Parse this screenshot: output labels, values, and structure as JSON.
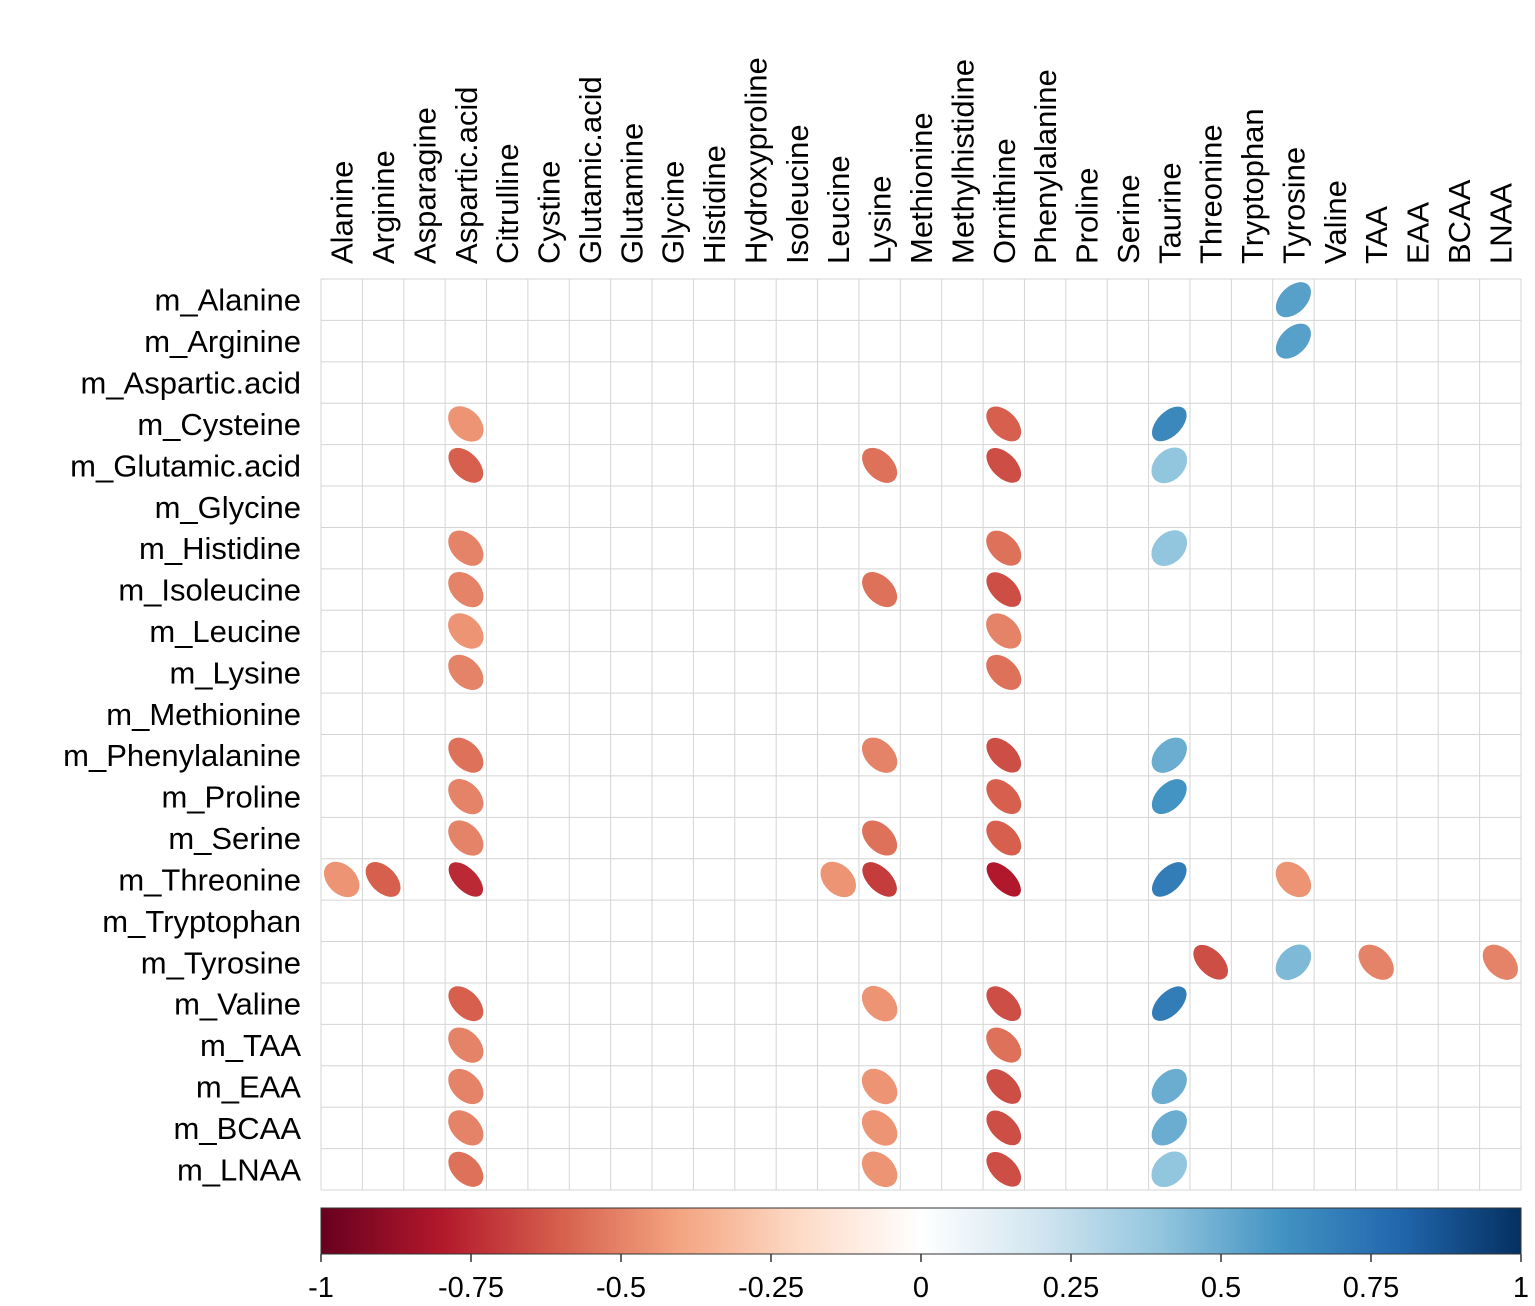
{
  "chart_data": {
    "type": "heatmap",
    "title": "",
    "xlabel": "",
    "ylabel": "",
    "columns": [
      "Alanine",
      "Arginine",
      "Asparagine",
      "Aspartic.acid",
      "Citrulline",
      "Cystine",
      "Glutamic.acid",
      "Glutamine",
      "Glycine",
      "Histidine",
      "Hydroxyproline",
      "Isoleucine",
      "Leucine",
      "Lysine",
      "Methionine",
      "Methylhistidine",
      "Ornithine",
      "Phenylalanine",
      "Proline",
      "Serine",
      "Taurine",
      "Threonine",
      "Tryptophan",
      "Tyrosine",
      "Valine",
      "TAA",
      "EAA",
      "BCAA",
      "LNAA"
    ],
    "rows": [
      "m_Alanine",
      "m_Arginine",
      "m_Aspartic.acid",
      "m_Cysteine",
      "m_Glutamic.acid",
      "m_Glycine",
      "m_Histidine",
      "m_Isoleucine",
      "m_Leucine",
      "m_Lysine",
      "m_Methionine",
      "m_Phenylalanine",
      "m_Proline",
      "m_Serine",
      "m_Threonine",
      "m_Tryptophan",
      "m_Tyrosine",
      "m_Valine",
      "m_TAA",
      "m_EAA",
      "m_BCAA",
      "m_LNAA"
    ],
    "cells": [
      {
        "row": "m_Alanine",
        "col": "Tyrosine",
        "value": 0.55
      },
      {
        "row": "m_Arginine",
        "col": "Tyrosine",
        "value": 0.55
      },
      {
        "row": "m_Cysteine",
        "col": "Aspartic.acid",
        "value": -0.45
      },
      {
        "row": "m_Cysteine",
        "col": "Ornithine",
        "value": -0.6
      },
      {
        "row": "m_Cysteine",
        "col": "Taurine",
        "value": 0.65
      },
      {
        "row": "m_Glutamic.acid",
        "col": "Aspartic.acid",
        "value": -0.6
      },
      {
        "row": "m_Glutamic.acid",
        "col": "Lysine",
        "value": -0.55
      },
      {
        "row": "m_Glutamic.acid",
        "col": "Ornithine",
        "value": -0.65
      },
      {
        "row": "m_Glutamic.acid",
        "col": "Taurine",
        "value": 0.4
      },
      {
        "row": "m_Histidine",
        "col": "Aspartic.acid",
        "value": -0.5
      },
      {
        "row": "m_Histidine",
        "col": "Ornithine",
        "value": -0.55
      },
      {
        "row": "m_Histidine",
        "col": "Taurine",
        "value": 0.4
      },
      {
        "row": "m_Isoleucine",
        "col": "Aspartic.acid",
        "value": -0.5
      },
      {
        "row": "m_Isoleucine",
        "col": "Lysine",
        "value": -0.55
      },
      {
        "row": "m_Isoleucine",
        "col": "Ornithine",
        "value": -0.65
      },
      {
        "row": "m_Leucine",
        "col": "Aspartic.acid",
        "value": -0.45
      },
      {
        "row": "m_Leucine",
        "col": "Ornithine",
        "value": -0.5
      },
      {
        "row": "m_Lysine",
        "col": "Aspartic.acid",
        "value": -0.5
      },
      {
        "row": "m_Lysine",
        "col": "Ornithine",
        "value": -0.55
      },
      {
        "row": "m_Phenylalanine",
        "col": "Aspartic.acid",
        "value": -0.55
      },
      {
        "row": "m_Phenylalanine",
        "col": "Lysine",
        "value": -0.5
      },
      {
        "row": "m_Phenylalanine",
        "col": "Ornithine",
        "value": -0.65
      },
      {
        "row": "m_Phenylalanine",
        "col": "Taurine",
        "value": 0.5
      },
      {
        "row": "m_Proline",
        "col": "Aspartic.acid",
        "value": -0.5
      },
      {
        "row": "m_Proline",
        "col": "Ornithine",
        "value": -0.6
      },
      {
        "row": "m_Proline",
        "col": "Taurine",
        "value": 0.6
      },
      {
        "row": "m_Serine",
        "col": "Aspartic.acid",
        "value": -0.5
      },
      {
        "row": "m_Serine",
        "col": "Lysine",
        "value": -0.55
      },
      {
        "row": "m_Serine",
        "col": "Ornithine",
        "value": -0.6
      },
      {
        "row": "m_Threonine",
        "col": "Alanine",
        "value": -0.45
      },
      {
        "row": "m_Threonine",
        "col": "Arginine",
        "value": -0.6
      },
      {
        "row": "m_Threonine",
        "col": "Aspartic.acid",
        "value": -0.75
      },
      {
        "row": "m_Threonine",
        "col": "Leucine",
        "value": -0.45
      },
      {
        "row": "m_Threonine",
        "col": "Lysine",
        "value": -0.7
      },
      {
        "row": "m_Threonine",
        "col": "Ornithine",
        "value": -0.8
      },
      {
        "row": "m_Threonine",
        "col": "Taurine",
        "value": 0.7
      },
      {
        "row": "m_Threonine",
        "col": "Tyrosine",
        "value": -0.45
      },
      {
        "row": "m_Tyrosine",
        "col": "Threonine",
        "value": -0.65
      },
      {
        "row": "m_Tyrosine",
        "col": "Tyrosine",
        "value": 0.45
      },
      {
        "row": "m_Tyrosine",
        "col": "TAA",
        "value": -0.5
      },
      {
        "row": "m_Tyrosine",
        "col": "LNAA",
        "value": -0.5
      },
      {
        "row": "m_Valine",
        "col": "Aspartic.acid",
        "value": -0.6
      },
      {
        "row": "m_Valine",
        "col": "Lysine",
        "value": -0.45
      },
      {
        "row": "m_Valine",
        "col": "Ornithine",
        "value": -0.65
      },
      {
        "row": "m_Valine",
        "col": "Taurine",
        "value": 0.7
      },
      {
        "row": "m_TAA",
        "col": "Aspartic.acid",
        "value": -0.5
      },
      {
        "row": "m_TAA",
        "col": "Ornithine",
        "value": -0.55
      },
      {
        "row": "m_EAA",
        "col": "Aspartic.acid",
        "value": -0.5
      },
      {
        "row": "m_EAA",
        "col": "Lysine",
        "value": -0.45
      },
      {
        "row": "m_EAA",
        "col": "Ornithine",
        "value": -0.65
      },
      {
        "row": "m_EAA",
        "col": "Taurine",
        "value": 0.5
      },
      {
        "row": "m_BCAA",
        "col": "Aspartic.acid",
        "value": -0.5
      },
      {
        "row": "m_BCAA",
        "col": "Lysine",
        "value": -0.45
      },
      {
        "row": "m_BCAA",
        "col": "Ornithine",
        "value": -0.65
      },
      {
        "row": "m_BCAA",
        "col": "Taurine",
        "value": 0.5
      },
      {
        "row": "m_LNAA",
        "col": "Aspartic.acid",
        "value": -0.55
      },
      {
        "row": "m_LNAA",
        "col": "Lysine",
        "value": -0.45
      },
      {
        "row": "m_LNAA",
        "col": "Ornithine",
        "value": -0.65
      },
      {
        "row": "m_LNAA",
        "col": "Taurine",
        "value": 0.4
      }
    ],
    "colorbar": {
      "range": [
        -1,
        1
      ],
      "ticks": [
        "-1",
        "-0.75",
        "-0.5",
        "-0.25",
        "0",
        "0.25",
        "0.5",
        "0.75",
        "1"
      ],
      "colors": [
        "#67001f",
        "#b2182b",
        "#d6604d",
        "#f4a582",
        "#fddbc7",
        "#ffffff",
        "#d1e5f0",
        "#92c5de",
        "#4393c3",
        "#2166ac",
        "#053061"
      ]
    },
    "grid": true,
    "legend": "bottom"
  }
}
